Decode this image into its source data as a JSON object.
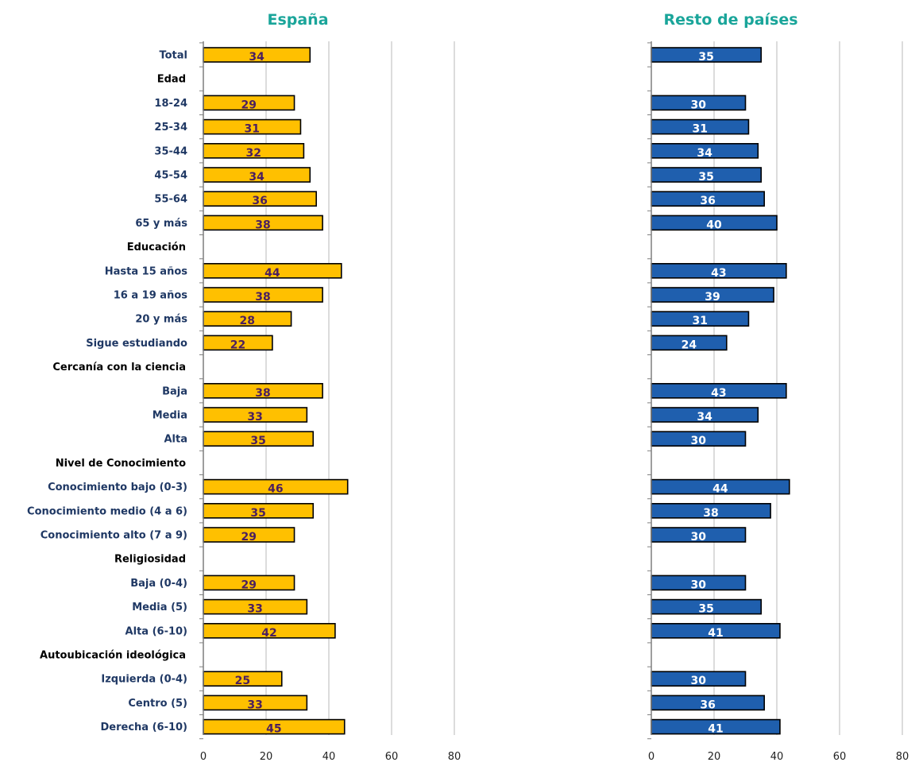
{
  "chart_data": [
    {
      "type": "bar",
      "orientation": "horizontal",
      "title": "España",
      "xlim": [
        0,
        80
      ],
      "xticks": [
        0,
        20,
        40,
        60,
        80
      ],
      "grid": true,
      "bar_color": "#ffc000",
      "label_color": "#4b1f5f",
      "title_color": "#1aa59a",
      "rows": [
        {
          "label": "Total",
          "kind": "category",
          "value": 34
        },
        {
          "label": "Edad",
          "kind": "group"
        },
        {
          "label": "18-24",
          "kind": "category",
          "value": 29
        },
        {
          "label": "25-34",
          "kind": "category",
          "value": 31
        },
        {
          "label": "35-44",
          "kind": "category",
          "value": 32
        },
        {
          "label": "45-54",
          "kind": "category",
          "value": 34
        },
        {
          "label": "55-64",
          "kind": "category",
          "value": 36
        },
        {
          "label": "65 y más",
          "kind": "category",
          "value": 38
        },
        {
          "label": "Educación",
          "kind": "group"
        },
        {
          "label": "Hasta 15 años",
          "kind": "category",
          "value": 44
        },
        {
          "label": "16 a 19 años",
          "kind": "category",
          "value": 38
        },
        {
          "label": "20 y más",
          "kind": "category",
          "value": 28
        },
        {
          "label": "Sigue estudiando",
          "kind": "category",
          "value": 22
        },
        {
          "label": "Cercanía con la ciencia",
          "kind": "group"
        },
        {
          "label": "Baja",
          "kind": "category",
          "value": 38
        },
        {
          "label": "Media",
          "kind": "category",
          "value": 33
        },
        {
          "label": "Alta",
          "kind": "category",
          "value": 35
        },
        {
          "label": "Nivel de Conocimiento",
          "kind": "group"
        },
        {
          "label": "Conocimiento bajo (0-3)",
          "kind": "category",
          "value": 46
        },
        {
          "label": "Conocimiento medio (4 a 6)",
          "kind": "category",
          "value": 35
        },
        {
          "label": "Conocimiento alto (7 a 9)",
          "kind": "category",
          "value": 29
        },
        {
          "label": "Religiosidad",
          "kind": "group"
        },
        {
          "label": "Baja (0-4)",
          "kind": "category",
          "value": 29
        },
        {
          "label": "Media (5)",
          "kind": "category",
          "value": 33
        },
        {
          "label": "Alta (6-10)",
          "kind": "category",
          "value": 42
        },
        {
          "label": "Autoubicación ideológica",
          "kind": "group"
        },
        {
          "label": "Izquierda (0-4)",
          "kind": "category",
          "value": 25
        },
        {
          "label": "Centro (5)",
          "kind": "category",
          "value": 33
        },
        {
          "label": "Derecha (6-10)",
          "kind": "category",
          "value": 45
        }
      ]
    },
    {
      "type": "bar",
      "orientation": "horizontal",
      "title": "Resto de países",
      "xlim": [
        0,
        80
      ],
      "xticks": [
        0,
        20,
        40,
        60,
        80
      ],
      "grid": true,
      "bar_color": "#1f5fae",
      "label_color": "#ffffff",
      "title_color": "#1aa59a",
      "rows": [
        {
          "label": "Total",
          "kind": "category",
          "value": 35
        },
        {
          "label": "Edad",
          "kind": "group"
        },
        {
          "label": "18-24",
          "kind": "category",
          "value": 30
        },
        {
          "label": "25-34",
          "kind": "category",
          "value": 31
        },
        {
          "label": "35-44",
          "kind": "category",
          "value": 34
        },
        {
          "label": "45-54",
          "kind": "category",
          "value": 35
        },
        {
          "label": "55-64",
          "kind": "category",
          "value": 36
        },
        {
          "label": "65 y más",
          "kind": "category",
          "value": 40
        },
        {
          "label": "Educación",
          "kind": "group"
        },
        {
          "label": "Hasta 15 años",
          "kind": "category",
          "value": 43
        },
        {
          "label": "16 a 19 años",
          "kind": "category",
          "value": 39
        },
        {
          "label": "20 y más",
          "kind": "category",
          "value": 31
        },
        {
          "label": "Sigue estudiando",
          "kind": "category",
          "value": 24
        },
        {
          "label": "Cercanía con la ciencia",
          "kind": "group"
        },
        {
          "label": "Baja",
          "kind": "category",
          "value": 43
        },
        {
          "label": "Media",
          "kind": "category",
          "value": 34
        },
        {
          "label": "Alta",
          "kind": "category",
          "value": 30
        },
        {
          "label": "Nivel de Conocimiento",
          "kind": "group"
        },
        {
          "label": "Conocimiento bajo (0-3)",
          "kind": "category",
          "value": 44
        },
        {
          "label": "Conocimiento medio (4 a 6)",
          "kind": "category",
          "value": 38
        },
        {
          "label": "Conocimiento alto (7 a 9)",
          "kind": "category",
          "value": 30
        },
        {
          "label": "Religiosidad",
          "kind": "group"
        },
        {
          "label": "Baja (0-4)",
          "kind": "category",
          "value": 30
        },
        {
          "label": "Media (5)",
          "kind": "category",
          "value": 35
        },
        {
          "label": "Alta (6-10)",
          "kind": "category",
          "value": 41
        },
        {
          "label": "Autoubicación ideológica",
          "kind": "group"
        },
        {
          "label": "Izquierda (0-4)",
          "kind": "category",
          "value": 30
        },
        {
          "label": "Centro (5)",
          "kind": "category",
          "value": 36
        },
        {
          "label": "Derecha (6-10)",
          "kind": "category",
          "value": 41
        }
      ]
    }
  ]
}
